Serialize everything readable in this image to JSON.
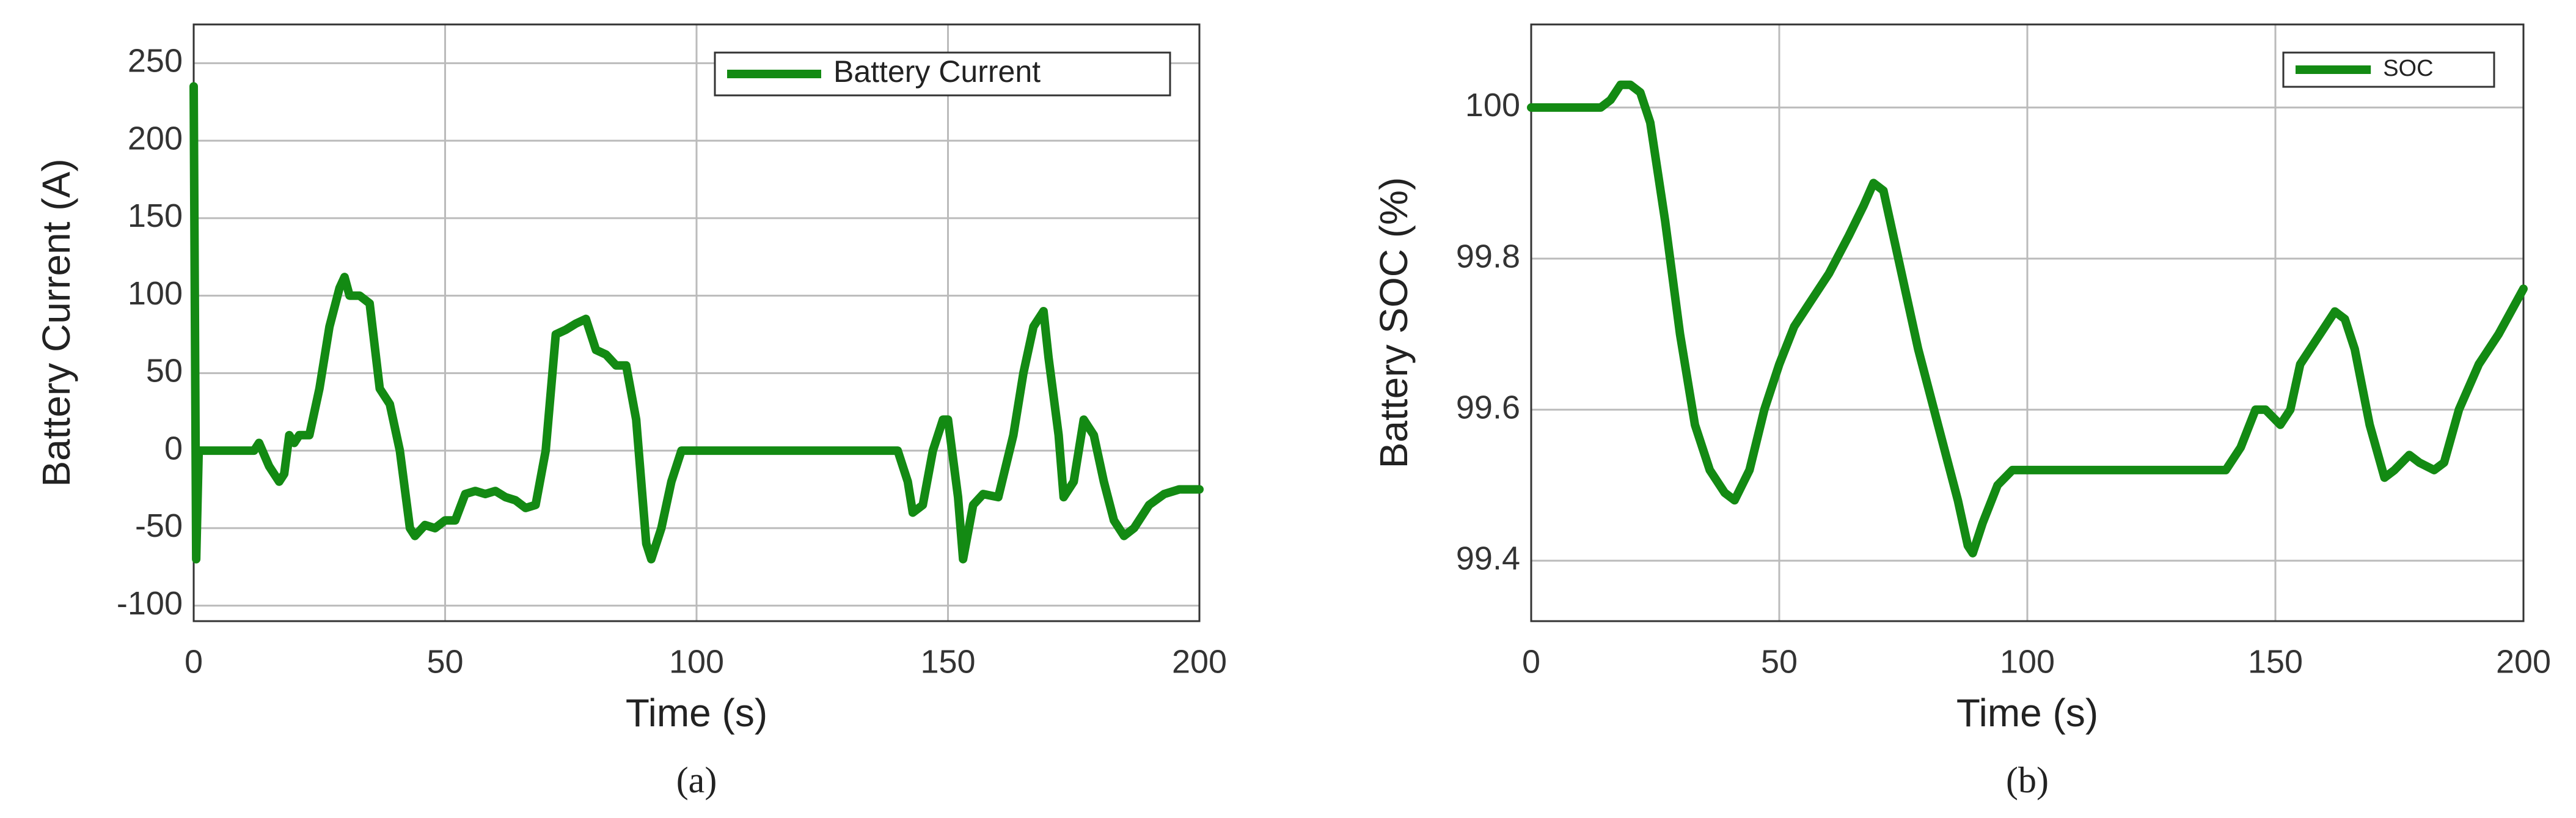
{
  "chart_data": [
    {
      "type": "line",
      "caption": "(a)",
      "xlabel": "Time (s)",
      "ylabel": "Battery Current (A)",
      "xlim": [
        0,
        200
      ],
      "xticks": [
        0,
        50,
        100,
        150,
        200
      ],
      "ylim": [
        -110,
        275
      ],
      "yticks": [
        -100,
        -50,
        0,
        50,
        100,
        150,
        200,
        250
      ],
      "grid": true,
      "legend": "upper right",
      "x": [
        0,
        0.5,
        1,
        12,
        13,
        15,
        17,
        18,
        19,
        20,
        21,
        23,
        25,
        27,
        29,
        30,
        31,
        33,
        35,
        37,
        39,
        41,
        43,
        44,
        46,
        48,
        50,
        52,
        54,
        56,
        58,
        60,
        62,
        64,
        66,
        68,
        70,
        72,
        74,
        76,
        78,
        80,
        82,
        84,
        86,
        88,
        90,
        91,
        93,
        95,
        97,
        100,
        138,
        140,
        142,
        143,
        145,
        147,
        149,
        150,
        152,
        153,
        155,
        157,
        160,
        163,
        165,
        167,
        169,
        170,
        172,
        173,
        175,
        177,
        179,
        181,
        183,
        185,
        187,
        190,
        193,
        196,
        200
      ],
      "series": [
        {
          "name": "Battery Current",
          "color": "#138a13",
          "values": [
            235,
            -70,
            0,
            0,
            5,
            -10,
            -20,
            -15,
            10,
            5,
            10,
            10,
            40,
            80,
            105,
            112,
            100,
            100,
            95,
            40,
            30,
            0,
            -50,
            -55,
            -48,
            -50,
            -45,
            -45,
            -28,
            -26,
            -28,
            -26,
            -30,
            -32,
            -37,
            -35,
            0,
            75,
            78,
            82,
            85,
            65,
            62,
            55,
            55,
            20,
            -60,
            -70,
            -50,
            -20,
            0,
            0,
            0,
            0,
            -20,
            -40,
            -35,
            0,
            20,
            20,
            -30,
            -70,
            -35,
            -28,
            -30,
            10,
            50,
            80,
            90,
            60,
            10,
            -30,
            -20,
            20,
            10,
            -20,
            -45,
            -55,
            -50,
            -35,
            -28,
            -25,
            -25
          ]
        }
      ]
    },
    {
      "type": "line",
      "caption": "(b)",
      "xlabel": "Time (s)",
      "ylabel": "Battery SOC (%)",
      "xlim": [
        0,
        200
      ],
      "xticks": [
        0,
        50,
        100,
        150,
        200
      ],
      "ylim": [
        99.32,
        100.11
      ],
      "yticks": [
        99.4,
        99.6,
        99.8,
        100
      ],
      "grid": true,
      "legend": "upper right",
      "x": [
        0,
        14,
        16,
        18,
        20,
        22,
        24,
        27,
        30,
        33,
        36,
        39,
        41,
        44,
        47,
        50,
        53,
        56,
        60,
        64,
        67,
        69,
        71,
        74,
        78,
        82,
        86,
        88,
        89,
        91,
        94,
        97,
        100,
        130,
        140,
        143,
        146,
        148,
        151,
        153,
        155,
        159,
        162,
        164,
        166,
        169,
        172,
        174,
        177,
        179,
        182,
        184,
        187,
        191,
        195,
        200
      ],
      "series": [
        {
          "name": "SOC",
          "color": "#138a13",
          "values": [
            100,
            100,
            100.01,
            100.03,
            100.03,
            100.02,
            99.98,
            99.85,
            99.7,
            99.58,
            99.52,
            99.49,
            99.48,
            99.52,
            99.6,
            99.66,
            99.71,
            99.74,
            99.78,
            99.83,
            99.87,
            99.9,
            99.89,
            99.8,
            99.68,
            99.58,
            99.48,
            99.42,
            99.41,
            99.45,
            99.5,
            99.52,
            99.52,
            99.52,
            99.52,
            99.55,
            99.6,
            99.6,
            99.58,
            99.6,
            99.66,
            99.7,
            99.73,
            99.72,
            99.68,
            99.58,
            99.51,
            99.52,
            99.54,
            99.53,
            99.52,
            99.53,
            99.6,
            99.66,
            99.7,
            99.76
          ]
        }
      ]
    }
  ]
}
